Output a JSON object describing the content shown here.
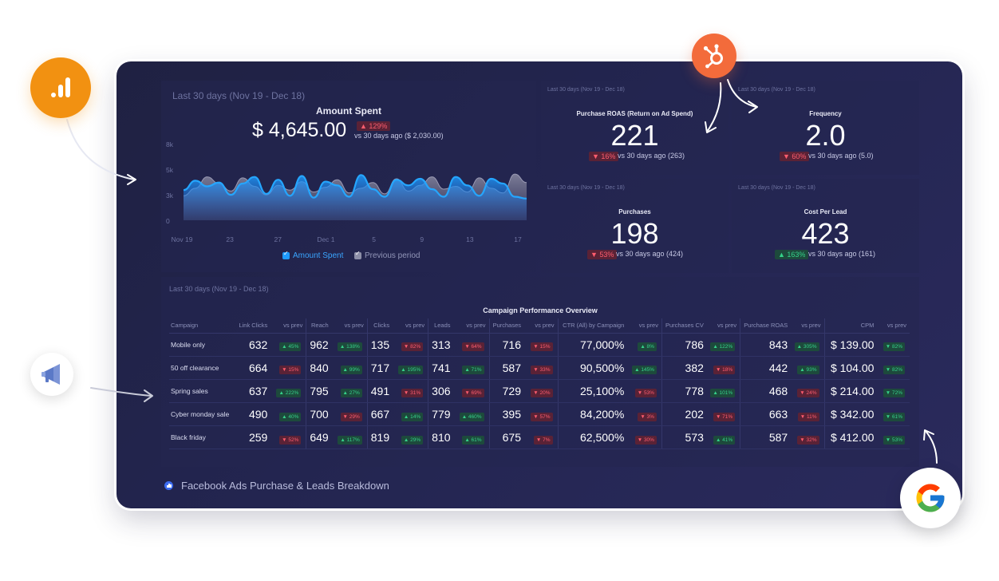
{
  "amount_spent": {
    "range_label": "Last 30 days (Nov 19 - Dec 18)",
    "title": "Amount Spent",
    "value": "$ 4,645.00",
    "delta": "▲ 129%",
    "vs_text": "vs 30 days ago ($ 2,030.00)",
    "legend_current": "Amount Spent",
    "legend_previous": "Previous period"
  },
  "chart_data": {
    "type": "area",
    "title": "Amount Spent",
    "x_tick_labels": [
      "Nov 19",
      "23",
      "27",
      "Dec 1",
      "5",
      "9",
      "13",
      "17"
    ],
    "y_tick_labels": [
      "8k",
      "5k",
      "3k",
      "0"
    ],
    "ylim": [
      0,
      8000
    ],
    "grid": false,
    "legend_placement": "bottom",
    "x": [
      "Nov 19",
      "Nov 20",
      "Nov 21",
      "Nov 22",
      "Nov 23",
      "Nov 24",
      "Nov 25",
      "Nov 26",
      "Nov 27",
      "Nov 28",
      "Nov 29",
      "Nov 30",
      "Dec 1",
      "Dec 2",
      "Dec 3",
      "Dec 4",
      "Dec 5",
      "Dec 6",
      "Dec 7",
      "Dec 8",
      "Dec 9",
      "Dec 10",
      "Dec 11",
      "Dec 12",
      "Dec 13",
      "Dec 14",
      "Dec 15",
      "Dec 16",
      "Dec 17",
      "Dec 18"
    ],
    "series": [
      {
        "name": "Amount Spent",
        "color": "#1e9bff",
        "values": [
          3200,
          4200,
          3600,
          4000,
          2700,
          3900,
          4600,
          2800,
          4300,
          2600,
          4700,
          2400,
          4100,
          3700,
          2500,
          4800,
          3300,
          2500,
          4300,
          3700,
          4400,
          3300,
          2500,
          4600,
          3700,
          2600,
          4400,
          3900,
          2500,
          2300
        ]
      },
      {
        "name": "Previous period",
        "color": "#8a8aa2",
        "values": [
          2600,
          3400,
          4600,
          3900,
          3100,
          4500,
          3600,
          2700,
          3700,
          3200,
          4100,
          3000,
          3500,
          4300,
          2900,
          3400,
          4000,
          2800,
          4400,
          3100,
          3700,
          4600,
          3300,
          3600,
          3000,
          4500,
          3400,
          2900,
          4900,
          4000
        ]
      }
    ]
  },
  "metrics": [
    {
      "range_label": "Last 30 days (Nov 19 - Dec 18)",
      "title": "Purchase ROAS (Return on Ad Spend)",
      "value": "221",
      "delta": "▼ 16%",
      "dir": "down",
      "vs_text": "vs 30 days ago (263)"
    },
    {
      "range_label": "Last 30 days (Nov 19 - Dec 18)",
      "title": "Frequency",
      "value": "2.0",
      "delta": "▼ 60%",
      "dir": "down",
      "vs_text": "vs 30 days ago (5.0)"
    },
    {
      "range_label": "Last 30 days (Nov 19 - Dec 18)",
      "title": "Purchases",
      "value": "198",
      "delta": "▼ 53%",
      "dir": "down",
      "vs_text": "vs 30 days ago (424)"
    },
    {
      "range_label": "Last 30 days (Nov 19 - Dec 18)",
      "title": "Cost Per Lead",
      "value": "423",
      "delta": "▲ 163%",
      "dir": "up",
      "vs_text": "vs 30 days ago (161)"
    }
  ],
  "table": {
    "range_label": "Last 30 days (Nov 19 - Dec 18)",
    "title": "Campaign Performance Overview",
    "headers": [
      "Campaign",
      "Link Clicks",
      "vs prev",
      "Reach",
      "vs prev",
      "Clicks",
      "vs prev",
      "Leads",
      "vs prev",
      "Purchases",
      "vs prev",
      "CTR (All) by Campaign",
      "vs prev",
      "Purchases CV",
      "vs prev",
      "Purchase ROAS",
      "vs prev",
      "CPM",
      "vs prev"
    ],
    "rows": [
      {
        "name": "Mobile only",
        "cells": [
          [
            "632",
            "▲ 45%",
            "up"
          ],
          [
            "962",
            "▲ 138%",
            "up"
          ],
          [
            "135",
            "▼ 82%",
            "down"
          ],
          [
            "313",
            "▼ 64%",
            "down"
          ],
          [
            "716",
            "▼ 15%",
            "down"
          ],
          [
            "77,000%",
            "▲ 8%",
            "up"
          ],
          [
            "786",
            "▲ 122%",
            "up"
          ],
          [
            "843",
            "▲ 305%",
            "up"
          ],
          [
            "$ 139.00",
            "▼ 82%",
            "up"
          ]
        ]
      },
      {
        "name": "50 off clearance",
        "cells": [
          [
            "664",
            "▼ 15%",
            "down"
          ],
          [
            "840",
            "▲ 99%",
            "up"
          ],
          [
            "717",
            "▲ 195%",
            "up"
          ],
          [
            "741",
            "▲ 71%",
            "up"
          ],
          [
            "587",
            "▼ 33%",
            "down"
          ],
          [
            "90,500%",
            "▲ 145%",
            "up"
          ],
          [
            "382",
            "▼ 18%",
            "down"
          ],
          [
            "442",
            "▲ 93%",
            "up"
          ],
          [
            "$ 104.00",
            "▼ 82%",
            "up"
          ]
        ]
      },
      {
        "name": "Spring sales",
        "cells": [
          [
            "637",
            "▲ 222%",
            "up"
          ],
          [
            "795",
            "▲ 27%",
            "up"
          ],
          [
            "491",
            "▼ 31%",
            "down"
          ],
          [
            "306",
            "▼ 69%",
            "down"
          ],
          [
            "729",
            "▼ 20%",
            "down"
          ],
          [
            "25,100%",
            "▼ 53%",
            "down"
          ],
          [
            "778",
            "▲ 101%",
            "up"
          ],
          [
            "468",
            "▼ 24%",
            "down"
          ],
          [
            "$ 214.00",
            "▼ 72%",
            "up"
          ]
        ]
      },
      {
        "name": "Cyber monday sale",
        "cells": [
          [
            "490",
            "▲ 40%",
            "up"
          ],
          [
            "700",
            "▼ 29%",
            "down"
          ],
          [
            "667",
            "▲ 14%",
            "up"
          ],
          [
            "779",
            "▲ 460%",
            "up"
          ],
          [
            "395",
            "▼ 57%",
            "down"
          ],
          [
            "84,200%",
            "▼ 3%",
            "down"
          ],
          [
            "202",
            "▼ 71%",
            "down"
          ],
          [
            "663",
            "▼ 11%",
            "down"
          ],
          [
            "$ 342.00",
            "▼ 61%",
            "up"
          ]
        ]
      },
      {
        "name": "Black friday",
        "cells": [
          [
            "259",
            "▼ 52%",
            "down"
          ],
          [
            "649",
            "▲ 117%",
            "up"
          ],
          [
            "819",
            "▲ 29%",
            "up"
          ],
          [
            "810",
            "▲ 61%",
            "up"
          ],
          [
            "675",
            "▼ 7%",
            "down"
          ],
          [
            "62,500%",
            "▼ 30%",
            "down"
          ],
          [
            "573",
            "▲ 41%",
            "up"
          ],
          [
            "587",
            "▼ 32%",
            "down"
          ],
          [
            "$ 412.00",
            "▼ 53%",
            "up"
          ]
        ]
      }
    ]
  },
  "footer": {
    "title": "Facebook Ads Purchase & Leads Breakdown"
  },
  "integrations": {
    "analytics": "google-analytics-icon",
    "hubspot": "hubspot-icon",
    "ads": "megaphone-icon",
    "google": "google-icon"
  },
  "colors": {
    "accent": "#1e9bff",
    "up": "#35d28a",
    "down": "#ff5d6e",
    "background": "#232550"
  }
}
